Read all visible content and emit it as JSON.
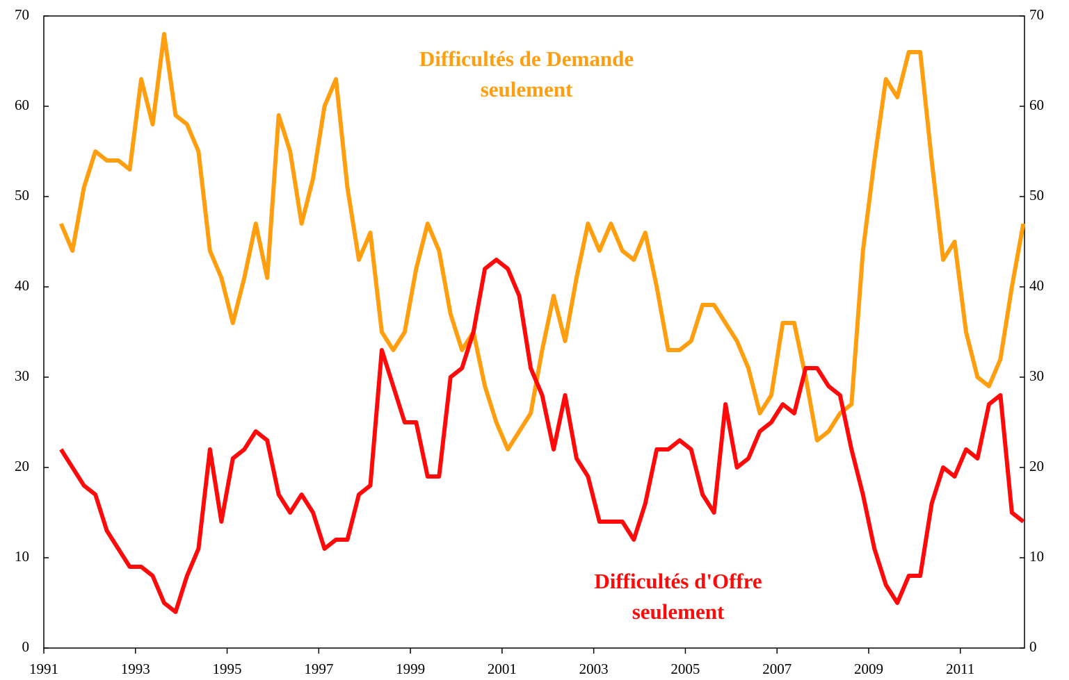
{
  "chart_data": {
    "type": "line",
    "x": [
      1991.375,
      1991.625,
      1991.875,
      1992.125,
      1992.375,
      1992.625,
      1992.875,
      1993.125,
      1993.375,
      1993.625,
      1993.875,
      1994.125,
      1994.375,
      1994.625,
      1994.875,
      1995.125,
      1995.375,
      1995.625,
      1995.875,
      1996.125,
      1996.375,
      1996.625,
      1996.875,
      1997.125,
      1997.375,
      1997.625,
      1997.875,
      1998.125,
      1998.375,
      1998.625,
      1998.875,
      1999.125,
      1999.375,
      1999.625,
      1999.875,
      2000.125,
      2000.375,
      2000.625,
      2000.875,
      2001.125,
      2001.375,
      2001.625,
      2001.875,
      2002.125,
      2002.375,
      2002.625,
      2002.875,
      2003.125,
      2003.375,
      2003.625,
      2003.875,
      2004.125,
      2004.375,
      2004.625,
      2004.875,
      2005.125,
      2005.375,
      2005.625,
      2005.875,
      2006.125,
      2006.375,
      2006.625,
      2006.875,
      2007.125,
      2007.375,
      2007.625,
      2007.875,
      2008.125,
      2008.375,
      2008.625,
      2008.875,
      2009.125,
      2009.375,
      2009.625,
      2009.875,
      2010.125,
      2010.375,
      2010.625,
      2010.875,
      2011.125,
      2011.375,
      2011.625,
      2011.875,
      2012.125,
      2012.375
    ],
    "series": [
      {
        "name": "Difficultés de Demande seulement",
        "color": "#ff9e0f",
        "values": [
          47,
          44,
          51,
          55,
          54,
          54,
          53,
          63,
          58,
          68,
          59,
          58,
          55,
          44,
          41,
          36,
          41,
          47,
          41,
          59,
          55,
          47,
          52,
          60,
          63,
          51,
          43,
          46,
          35,
          33,
          35,
          42,
          47,
          44,
          37,
          33,
          35,
          29,
          25,
          22,
          24,
          26,
          33,
          39,
          34,
          41,
          47,
          44,
          47,
          44,
          43,
          46,
          40,
          33,
          33,
          34,
          38,
          38,
          36,
          34,
          31,
          26,
          28,
          36,
          36,
          30,
          23,
          24,
          26,
          27,
          44,
          54,
          63,
          61,
          66,
          66,
          54,
          43,
          45,
          35,
          30,
          29,
          32,
          40,
          47
        ]
      },
      {
        "name": "Difficultés d'Offre seulement",
        "color": "#ff0a0a",
        "values": [
          22,
          20,
          18,
          17,
          13,
          11,
          9,
          9,
          8,
          5,
          4,
          8,
          11,
          22,
          14,
          21,
          22,
          24,
          23,
          17,
          15,
          17,
          15,
          11,
          12,
          12,
          17,
          18,
          33,
          29,
          25,
          25,
          19,
          19,
          30,
          31,
          35,
          42,
          43,
          42,
          39,
          31,
          28,
          22,
          28,
          21,
          19,
          14,
          14,
          14,
          12,
          16,
          22,
          22,
          23,
          22,
          17,
          15,
          27,
          20,
          21,
          24,
          25,
          27,
          26,
          31,
          31,
          29,
          28,
          22,
          17,
          11,
          7,
          5,
          8,
          8,
          16,
          20,
          19,
          22,
          21,
          27,
          28,
          15,
          14
        ]
      }
    ],
    "annotations": [
      {
        "lines": [
          "Difficultés de Demande",
          "seulement"
        ],
        "color": "#ff9e0f"
      },
      {
        "lines": [
          "Difficultés d'Offre",
          "seulement"
        ],
        "color": "#ff0a0a"
      }
    ],
    "xlim": [
      1991,
      2012.4
    ],
    "xticks": [
      1991,
      1993,
      1995,
      1997,
      1999,
      2001,
      2003,
      2005,
      2007,
      2009,
      2011
    ],
    "ylim": [
      0,
      70
    ],
    "yticks": [
      0,
      10,
      20,
      30,
      40,
      50,
      60,
      70
    ],
    "y2lim": [
      0,
      70
    ],
    "y2ticks": [
      0,
      10,
      20,
      30,
      40,
      50,
      60,
      70
    ],
    "grid": false
  }
}
